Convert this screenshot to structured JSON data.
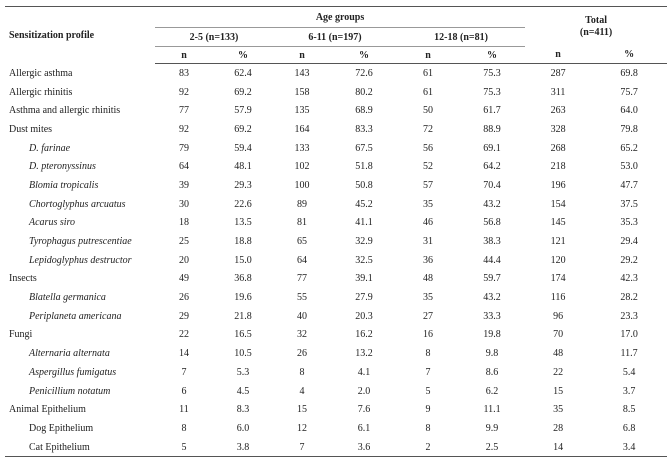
{
  "table": {
    "profile_header": "Sensitization profile",
    "age_groups_header": "Age groups",
    "total_header_line1": "Total",
    "total_header_line2": "(n=411)",
    "groups": [
      "2-5 (n=133)",
      "6-11 (n=197)",
      "12-18 (n=81)"
    ],
    "sub_n": "n",
    "sub_pct": "%",
    "rows": [
      {
        "label": "Allergic asthma",
        "style": "main",
        "values": [
          "83",
          "62.4",
          "143",
          "72.6",
          "61",
          "75.3",
          "287",
          "69.8"
        ]
      },
      {
        "label": "Allergic rhinitis",
        "style": "main",
        "values": [
          "92",
          "69.2",
          "158",
          "80.2",
          "61",
          "75.3",
          "311",
          "75.7"
        ]
      },
      {
        "label": "Asthma and allergic rhinitis",
        "style": "main",
        "values": [
          "77",
          "57.9",
          "135",
          "68.9",
          "50",
          "61.7",
          "263",
          "64.0"
        ]
      },
      {
        "label": "Dust mites",
        "style": "main",
        "values": [
          "92",
          "69.2",
          "164",
          "83.3",
          "72",
          "88.9",
          "328",
          "79.8"
        ]
      },
      {
        "label": "D. farinae",
        "style": "italic",
        "values": [
          "79",
          "59.4",
          "133",
          "67.5",
          "56",
          "69.1",
          "268",
          "65.2"
        ]
      },
      {
        "label": "D. pteronyssinus",
        "style": "italic",
        "values": [
          "64",
          "48.1",
          "102",
          "51.8",
          "52",
          "64.2",
          "218",
          "53.0"
        ]
      },
      {
        "label": "Blomia tropicalis",
        "style": "italic",
        "values": [
          "39",
          "29.3",
          "100",
          "50.8",
          "57",
          "70.4",
          "196",
          "47.7"
        ]
      },
      {
        "label": "Chortoglyphus arcuatus",
        "style": "italic",
        "values": [
          "30",
          "22.6",
          "89",
          "45.2",
          "35",
          "43.2",
          "154",
          "37.5"
        ]
      },
      {
        "label": "Acarus siro",
        "style": "italic",
        "values": [
          "18",
          "13.5",
          "81",
          "41.1",
          "46",
          "56.8",
          "145",
          "35.3"
        ]
      },
      {
        "label": "Tyrophagus putrescentiae",
        "style": "italic",
        "values": [
          "25",
          "18.8",
          "65",
          "32.9",
          "31",
          "38.3",
          "121",
          "29.4"
        ]
      },
      {
        "label": "Lepidoglyphus destructor",
        "style": "italic",
        "values": [
          "20",
          "15.0",
          "64",
          "32.5",
          "36",
          "44.4",
          "120",
          "29.2"
        ]
      },
      {
        "label": "Insects",
        "style": "main",
        "values": [
          "49",
          "36.8",
          "77",
          "39.1",
          "48",
          "59.7",
          "174",
          "42.3"
        ]
      },
      {
        "label": "Blatella germanica",
        "style": "italic",
        "values": [
          "26",
          "19.6",
          "55",
          "27.9",
          "35",
          "43.2",
          "116",
          "28.2"
        ]
      },
      {
        "label": "Periplaneta americana",
        "style": "italic",
        "values": [
          "29",
          "21.8",
          "40",
          "20.3",
          "27",
          "33.3",
          "96",
          "23.3"
        ]
      },
      {
        "label": "Fungi",
        "style": "main",
        "values": [
          "22",
          "16.5",
          "32",
          "16.2",
          "16",
          "19.8",
          "70",
          "17.0"
        ]
      },
      {
        "label": "Alternaria alternata",
        "style": "italic",
        "values": [
          "14",
          "10.5",
          "26",
          "13.2",
          "8",
          "9.8",
          "48",
          "11.7"
        ]
      },
      {
        "label": "Aspergillus fumigatus",
        "style": "italic",
        "values": [
          "7",
          "5.3",
          "8",
          "4.1",
          "7",
          "8.6",
          "22",
          "5.4"
        ]
      },
      {
        "label": "Penicillium notatum",
        "style": "italic",
        "values": [
          "6",
          "4.5",
          "4",
          "2.0",
          "5",
          "6.2",
          "15",
          "3.7"
        ]
      },
      {
        "label": "Animal Epithelium",
        "style": "main",
        "values": [
          "11",
          "8.3",
          "15",
          "7.6",
          "9",
          "11.1",
          "35",
          "8.5"
        ]
      },
      {
        "label": "Dog Epithelium",
        "style": "plain-sub",
        "values": [
          "8",
          "6.0",
          "12",
          "6.1",
          "8",
          "9.9",
          "28",
          "6.8"
        ]
      },
      {
        "label": "Cat Epithelium",
        "style": "plain-sub",
        "values": [
          "5",
          "3.8",
          "7",
          "3.6",
          "2",
          "2.5",
          "14",
          "3.4"
        ]
      }
    ]
  }
}
